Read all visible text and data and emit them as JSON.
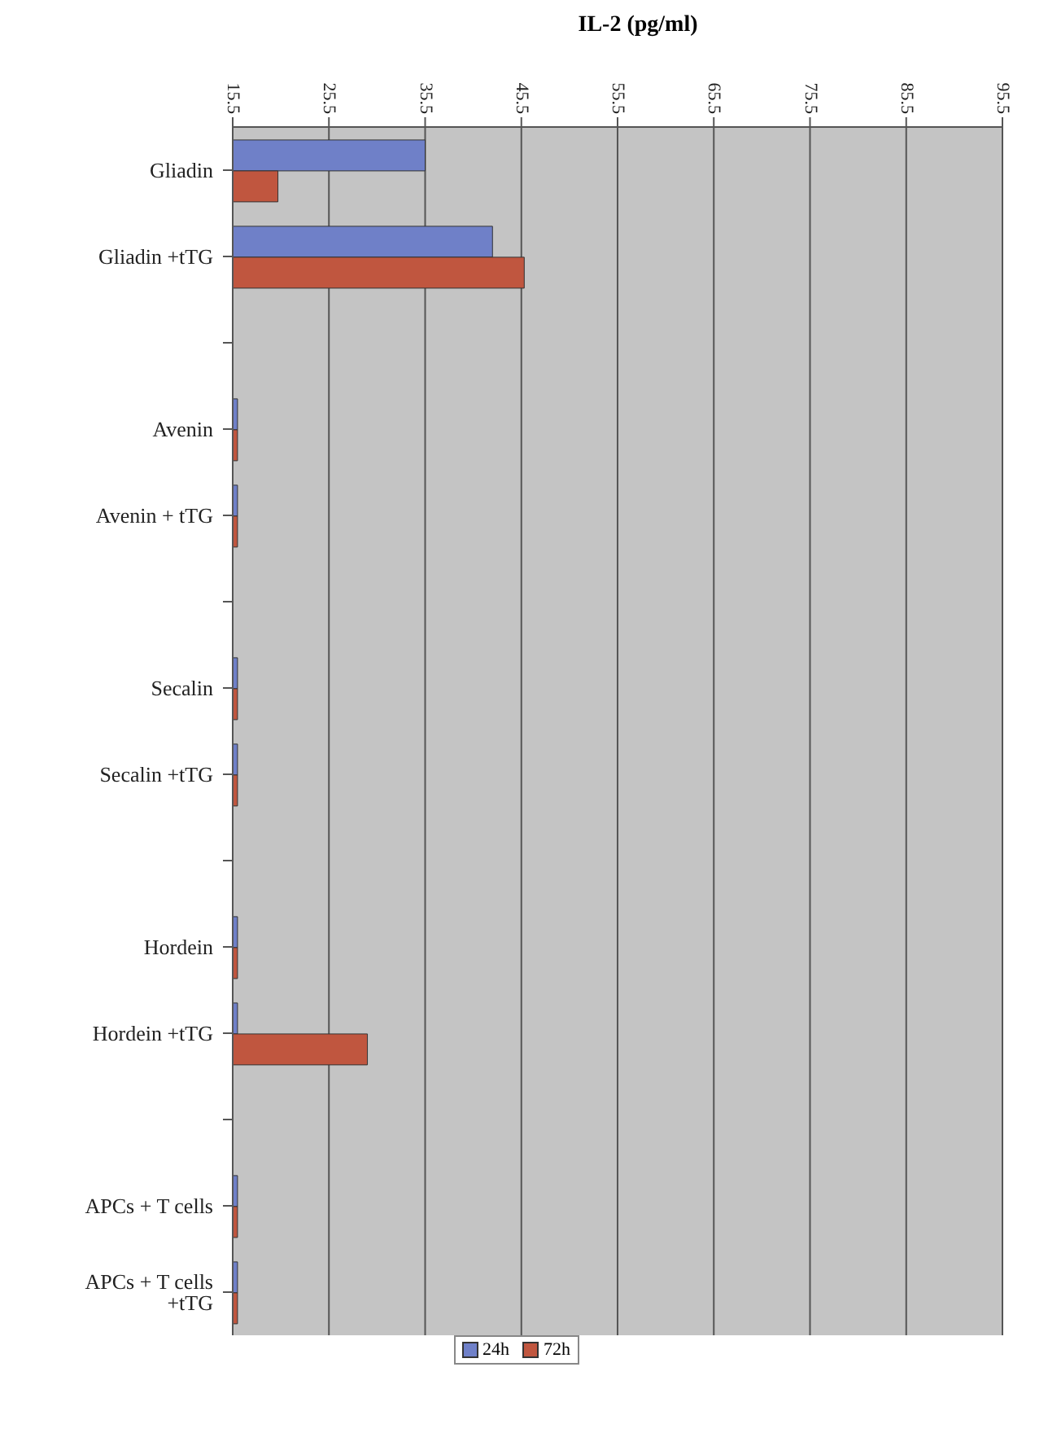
{
  "chart_data": {
    "type": "bar",
    "orientation": "horizontal",
    "xlabel": "IL-2 (pg/ml)",
    "categories": [
      "Gliadin",
      "Gliadin +tTG",
      null,
      "Avenin",
      "Avenin + tTG",
      null,
      "Secalin",
      "Secalin +tTG",
      null,
      "Hordein",
      "Hordein +tTG",
      null,
      "APCs + T cells",
      "APCs + T cells +tTG"
    ],
    "series": [
      {
        "name": "24h",
        "color": "#6f80c8",
        "values": [
          35.5,
          42.5,
          null,
          16,
          16,
          null,
          16,
          16,
          null,
          16,
          16,
          null,
          16,
          16
        ]
      },
      {
        "name": "72h",
        "color": "#c0563f",
        "values": [
          20.2,
          45.8,
          null,
          16,
          16,
          null,
          16,
          16,
          null,
          16,
          29.5,
          null,
          16,
          16
        ]
      }
    ],
    "xlim": [
      15.5,
      95.5
    ],
    "xticks": [
      15.5,
      25.5,
      35.5,
      45.5,
      55.5,
      65.5,
      75.5,
      85.5,
      95.5
    ],
    "grid": "x",
    "legend": "bottom"
  }
}
